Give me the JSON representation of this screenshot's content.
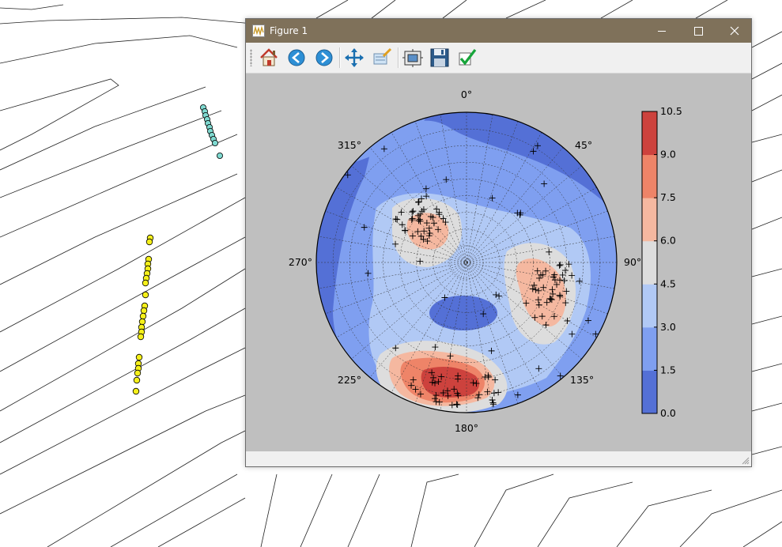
{
  "window": {
    "title": "Figure 1",
    "controls": [
      "minimize",
      "maximize",
      "close"
    ]
  },
  "toolbar": {
    "buttons": [
      {
        "icon": "home-icon",
        "tooltip": ""
      },
      {
        "icon": "back-arrow-icon",
        "tooltip": ""
      },
      {
        "icon": "forward-arrow-icon",
        "tooltip": ""
      },
      {
        "icon": "pan-icon",
        "tooltip": ""
      },
      {
        "icon": "zoom-rect-icon",
        "tooltip": ""
      },
      {
        "icon": "subplots-icon",
        "tooltip": ""
      },
      {
        "icon": "save-icon",
        "tooltip": ""
      },
      {
        "icon": "checkmark-icon",
        "tooltip": ""
      }
    ]
  },
  "status_text": "",
  "colors": {
    "titlebar": "#7f715a",
    "canvas_bg": "#bfbfbf",
    "levels": [
      "#5470d6",
      "#7f9ff0",
      "#b1c9f5",
      "#dddddd",
      "#f5b8a0",
      "#ee8468",
      "#cd423d"
    ]
  },
  "chart_data": {
    "type": "stereonet-density",
    "title": "",
    "azimuth_labels": [
      "0°",
      "45°",
      "90°",
      "135°",
      "180°",
      "225°",
      "270°",
      "315°"
    ],
    "colorbar": {
      "ticks": [
        "0.0",
        "1.5",
        "3.0",
        "4.5",
        "6.0",
        "7.5",
        "9.0",
        "10.5"
      ],
      "min": 0.0,
      "max": 10.5,
      "levels": [
        0.0,
        1.5,
        3.0,
        4.5,
        6.0,
        7.5,
        9.0,
        10.5
      ]
    },
    "density_peaks_trend_plunge": [
      {
        "trend": 186,
        "plunge": 15,
        "level": 9.0
      },
      {
        "trend": 110,
        "plunge": 40,
        "level": 6.0
      },
      {
        "trend": 315,
        "plunge": 55,
        "level": 6.0
      }
    ],
    "poles_count": 150,
    "grid": true
  }
}
